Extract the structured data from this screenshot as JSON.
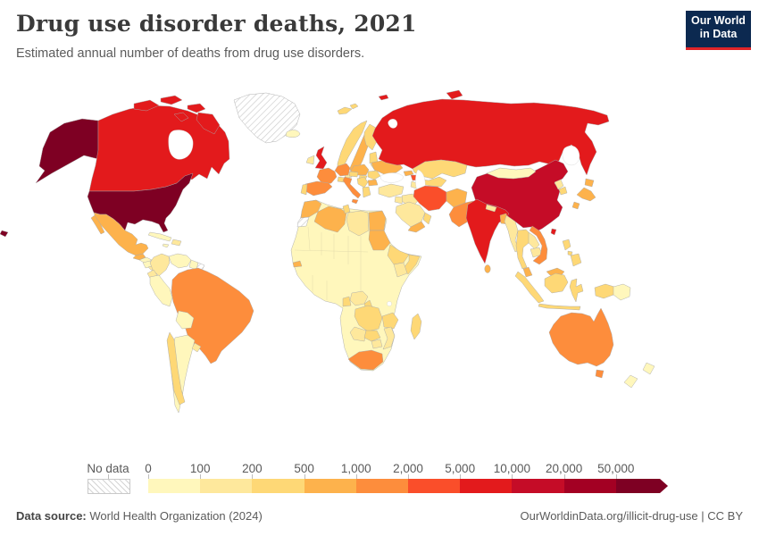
{
  "header": {
    "title": "Drug use disorder deaths, 2021",
    "subtitle": "Estimated annual number of deaths from drug use disorders.",
    "logo": {
      "line1": "Our World",
      "line2": "in Data",
      "bg": "#0c2950",
      "accent": "#e02428"
    }
  },
  "legend": {
    "no_data_label": "No data",
    "ticks": [
      "0",
      "100",
      "200",
      "500",
      "1,000",
      "2,000",
      "5,000",
      "10,000",
      "20,000",
      "50,000"
    ],
    "colors": [
      "#FFF7BC",
      "#FEE89C",
      "#FED876",
      "#FDB24C",
      "#FD8D3C",
      "#FA4E2A",
      "#E31A1C",
      "#C50C27",
      "#A30023",
      "#7E0023"
    ]
  },
  "footer": {
    "source_label": "Data source:",
    "source_text": " World Health Organization (2024)",
    "license_text": "OurWorldinData.org/illicit-drug-use | CC BY"
  },
  "chart_data": {
    "type": "choropleth",
    "title": "Drug use disorder deaths, 2021",
    "unit": "deaths per year",
    "year": 2021,
    "bin_edges": [
      0,
      100,
      200,
      500,
      1000,
      2000,
      5000,
      10000,
      20000,
      50000
    ],
    "ranges": [
      "0–100",
      "100–200",
      "200–500",
      "500–1,000",
      "1,000–2,000",
      "2,000–5,000",
      "5,000–10,000",
      "10,000–20,000",
      "20,000–50,000",
      "50,000+"
    ],
    "legend_position": "bottom",
    "countries": [
      {
        "id": "usa",
        "name": "United States",
        "range": "50,000+"
      },
      {
        "id": "canada",
        "name": "Canada",
        "range": "5,000–10,000"
      },
      {
        "id": "greenland",
        "name": "Greenland",
        "range": "No data"
      },
      {
        "id": "mexico",
        "name": "Mexico",
        "range": "500–1,000"
      },
      {
        "id": "guatemala",
        "name": "Guatemala",
        "range": "500–1,000"
      },
      {
        "id": "honduras",
        "name": "Honduras",
        "range": "0–100"
      },
      {
        "id": "nicaragua",
        "name": "Nicaragua",
        "range": "0–100"
      },
      {
        "id": "panama",
        "name": "Panama",
        "range": "100–200"
      },
      {
        "id": "cuba",
        "name": "Cuba",
        "range": "0–100"
      },
      {
        "id": "dominican-republic",
        "name": "Dominican Republic",
        "range": "100–200"
      },
      {
        "id": "jamaica",
        "name": "Jamaica",
        "range": "0–100"
      },
      {
        "id": "colombia",
        "name": "Colombia",
        "range": "100–200"
      },
      {
        "id": "venezuela",
        "name": "Venezuela",
        "range": "0–100"
      },
      {
        "id": "guyana",
        "name": "Guyana",
        "range": "0–100"
      },
      {
        "id": "french-guiana",
        "name": "French Guiana",
        "range": "No data"
      },
      {
        "id": "ecuador",
        "name": "Ecuador",
        "range": "100–200"
      },
      {
        "id": "peru",
        "name": "Peru",
        "range": "0–100"
      },
      {
        "id": "brazil",
        "name": "Brazil",
        "range": "1,000–2,000"
      },
      {
        "id": "bolivia",
        "name": "Bolivia",
        "range": "0–100"
      },
      {
        "id": "paraguay",
        "name": "Paraguay",
        "range": "0–100"
      },
      {
        "id": "chile",
        "name": "Chile",
        "range": "200–500"
      },
      {
        "id": "argentina",
        "name": "Argentina",
        "range": "0–100"
      },
      {
        "id": "uruguay",
        "name": "Uruguay",
        "range": "100–200"
      },
      {
        "id": "iceland",
        "name": "Iceland",
        "range": "0–100"
      },
      {
        "id": "uk",
        "name": "United Kingdom",
        "range": "5,000–10,000"
      },
      {
        "id": "ireland",
        "name": "Ireland",
        "range": "100–200"
      },
      {
        "id": "norway",
        "name": "Norway",
        "range": "200–500"
      },
      {
        "id": "sweden",
        "name": "Sweden",
        "range": "500–1,000"
      },
      {
        "id": "finland",
        "name": "Finland",
        "range": "200–500"
      },
      {
        "id": "denmark",
        "name": "Denmark",
        "range": "100–200"
      },
      {
        "id": "germany",
        "name": "Germany",
        "range": "1,000–2,000"
      },
      {
        "id": "poland",
        "name": "Poland",
        "range": "500–1,000"
      },
      {
        "id": "france",
        "name": "France",
        "range": "1,000–2,000"
      },
      {
        "id": "spain",
        "name": "Spain",
        "range": "1,000–2,000"
      },
      {
        "id": "portugal",
        "name": "Portugal",
        "range": "200–500"
      },
      {
        "id": "italy",
        "name": "Italy",
        "range": "1,000–2,000"
      },
      {
        "id": "switzerland",
        "name": "Switzerland",
        "range": "200–500"
      },
      {
        "id": "austria",
        "name": "Austria",
        "range": "200–500"
      },
      {
        "id": "hungary",
        "name": "Hungary",
        "range": "200–500"
      },
      {
        "id": "serbia",
        "name": "Serbia",
        "range": "200–500"
      },
      {
        "id": "romania",
        "name": "Romania",
        "range": "200–500"
      },
      {
        "id": "bulgaria",
        "name": "Bulgaria",
        "range": "500–1,000"
      },
      {
        "id": "greece",
        "name": "Greece",
        "range": "200–500"
      },
      {
        "id": "lithuania",
        "name": "Lithuania",
        "range": "200–500"
      },
      {
        "id": "belarus",
        "name": "Belarus",
        "range": "200–500"
      },
      {
        "id": "ukraine",
        "name": "Ukraine",
        "range": "500–1,000"
      },
      {
        "id": "russia",
        "name": "Russia",
        "range": "5,000–10,000"
      },
      {
        "id": "morocco",
        "name": "Morocco",
        "range": "500–1,000"
      },
      {
        "id": "western-sahara",
        "name": "Western Sahara",
        "range": "No data"
      },
      {
        "id": "algeria",
        "name": "Algeria",
        "range": "500–1,000"
      },
      {
        "id": "tunisia",
        "name": "Tunisia",
        "range": "200–500"
      },
      {
        "id": "libya",
        "name": "Libya",
        "range": "100–200"
      },
      {
        "id": "egypt",
        "name": "Egypt",
        "range": "500–1,000"
      },
      {
        "id": "senegal",
        "name": "Senegal",
        "range": "500–1,000"
      },
      {
        "id": "ghana",
        "name": "Ghana",
        "range": "200–500"
      },
      {
        "id": "nigeria",
        "name": "Nigeria",
        "range": "100–200"
      },
      {
        "id": "cameroon",
        "name": "Cameroon",
        "range": "200–500"
      },
      {
        "id": "sudan",
        "name": "Sudan",
        "range": "500–1,000"
      },
      {
        "id": "ethiopia",
        "name": "Ethiopia",
        "range": "200–500"
      },
      {
        "id": "somalia",
        "name": "Somalia",
        "range": "200–500"
      },
      {
        "id": "kenya",
        "name": "Kenya",
        "range": "100–200"
      },
      {
        "id": "drc",
        "name": "Democratic Republic of Congo",
        "range": "200–500"
      },
      {
        "id": "tanzania",
        "name": "Tanzania",
        "range": "200–500"
      },
      {
        "id": "angola",
        "name": "Angola",
        "range": "100–200"
      },
      {
        "id": "zambia",
        "name": "Zambia",
        "range": "200–500"
      },
      {
        "id": "zimbabwe",
        "name": "Zimbabwe",
        "range": "100–200"
      },
      {
        "id": "mozambique",
        "name": "Mozambique",
        "range": "100–200"
      },
      {
        "id": "south-africa",
        "name": "South Africa",
        "range": "1,000–2,000"
      },
      {
        "id": "madagascar",
        "name": "Madagascar",
        "range": "200–500"
      },
      {
        "id": "turkey",
        "name": "Turkey",
        "range": "100–200"
      },
      {
        "id": "syria",
        "name": "Syria",
        "range": "100–200"
      },
      {
        "id": "iraq",
        "name": "Iraq",
        "range": "100–200"
      },
      {
        "id": "saudi-arabia",
        "name": "Saudi Arabia",
        "range": "100–200"
      },
      {
        "id": "yemen",
        "name": "Yemen",
        "range": "500–1,000"
      },
      {
        "id": "oman",
        "name": "Oman",
        "range": "200–500"
      },
      {
        "id": "iran",
        "name": "Iran",
        "range": "2,000–5,000"
      },
      {
        "id": "georgia",
        "name": "Georgia",
        "range": "500–1,000"
      },
      {
        "id": "azerbaijan",
        "name": "Azerbaijan",
        "range": "2,000–5,000"
      },
      {
        "id": "kazakhstan",
        "name": "Kazakhstan",
        "range": "200–500"
      },
      {
        "id": "uzbekistan",
        "name": "Uzbekistan",
        "range": "200–500"
      },
      {
        "id": "turkmenistan",
        "name": "Turkmenistan",
        "range": "100–200"
      },
      {
        "id": "afghanistan",
        "name": "Afghanistan",
        "range": "500–1,000"
      },
      {
        "id": "pakistan",
        "name": "Pakistan",
        "range": "1,000–2,000"
      },
      {
        "id": "india",
        "name": "India",
        "range": "5,000–10,000"
      },
      {
        "id": "nepal",
        "name": "Nepal",
        "range": "100–200"
      },
      {
        "id": "bangladesh",
        "name": "Bangladesh",
        "range": "500–1,000"
      },
      {
        "id": "sri-lanka",
        "name": "Sri Lanka",
        "range": "500–1,000"
      },
      {
        "id": "china",
        "name": "China",
        "range": "10,000–20,000"
      },
      {
        "id": "mongolia",
        "name": "Mongolia",
        "range": "0–100"
      },
      {
        "id": "north-korea",
        "name": "North Korea",
        "range": "100–200"
      },
      {
        "id": "south-korea",
        "name": "South Korea",
        "range": "200–500"
      },
      {
        "id": "japan",
        "name": "Japan",
        "range": "500–1,000"
      },
      {
        "id": "taiwan",
        "name": "Taiwan",
        "range": "5,000–10,000"
      },
      {
        "id": "myanmar",
        "name": "Myanmar",
        "range": "100–200"
      },
      {
        "id": "thailand",
        "name": "Thailand",
        "range": "200–500"
      },
      {
        "id": "laos",
        "name": "Laos",
        "range": "100–200"
      },
      {
        "id": "cambodia",
        "name": "Cambodia",
        "range": "100–200"
      },
      {
        "id": "vietnam",
        "name": "Vietnam",
        "range": "1,000–2,000"
      },
      {
        "id": "malaysia",
        "name": "Malaysia",
        "range": "500–1,000"
      },
      {
        "id": "indonesia",
        "name": "Indonesia",
        "range": "200–500"
      },
      {
        "id": "philippines",
        "name": "Philippines",
        "range": "200–500"
      },
      {
        "id": "papua-new-guinea",
        "name": "Papua New Guinea",
        "range": "0–100"
      },
      {
        "id": "australia",
        "name": "Australia",
        "range": "1,000–2,000"
      },
      {
        "id": "new-zealand",
        "name": "New Zealand",
        "range": "0–100"
      }
    ]
  }
}
